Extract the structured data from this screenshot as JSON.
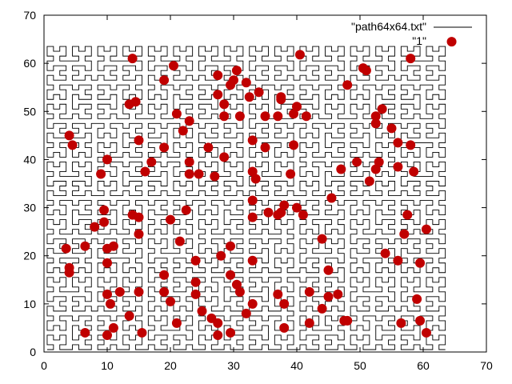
{
  "chart_data": {
    "type": "scatter",
    "xlim": [
      0,
      70
    ],
    "ylim": [
      0,
      70
    ],
    "xticks": [
      0,
      10,
      20,
      30,
      40,
      50,
      60,
      70
    ],
    "yticks": [
      0,
      10,
      20,
      30,
      40,
      50,
      60,
      70
    ],
    "legend_position": "top-right",
    "grid": false,
    "path_grid_size": 64,
    "series": [
      {
        "name": "\"path64x64.txt\"",
        "kind": "line",
        "color": "#000000"
      },
      {
        "name": "\"1\"",
        "kind": "points",
        "color": "#c00000",
        "points": [
          [
            64.5,
            64.5
          ],
          [
            14,
            61
          ],
          [
            20.5,
            59.5
          ],
          [
            40.5,
            61.8
          ],
          [
            58,
            61
          ],
          [
            50.5,
            59
          ],
          [
            51,
            58.5
          ],
          [
            27.5,
            57.5
          ],
          [
            30.5,
            58.5
          ],
          [
            30,
            56.5
          ],
          [
            29.5,
            55.5
          ],
          [
            19,
            56.5
          ],
          [
            32,
            56
          ],
          [
            48,
            55.5
          ],
          [
            27.5,
            53.5
          ],
          [
            32.5,
            53
          ],
          [
            34,
            54
          ],
          [
            37.5,
            53
          ],
          [
            37.5,
            52.5
          ],
          [
            13.5,
            51.5
          ],
          [
            14.5,
            52
          ],
          [
            28.5,
            51.5
          ],
          [
            40,
            51
          ],
          [
            53.5,
            50.5
          ],
          [
            39.5,
            49.5
          ],
          [
            52.5,
            49
          ],
          [
            21,
            49.5
          ],
          [
            28.5,
            49
          ],
          [
            31,
            49
          ],
          [
            35,
            49
          ],
          [
            37,
            49
          ],
          [
            41.5,
            49
          ],
          [
            23,
            48
          ],
          [
            52.5,
            47.5
          ],
          [
            55,
            46.5
          ],
          [
            22,
            46
          ],
          [
            4,
            45
          ],
          [
            33,
            44
          ],
          [
            15,
            44
          ],
          [
            4.5,
            43
          ],
          [
            19,
            42.5
          ],
          [
            26,
            42.5
          ],
          [
            35,
            42.5
          ],
          [
            39.5,
            43
          ],
          [
            56,
            43.5
          ],
          [
            58,
            43
          ],
          [
            10,
            40
          ],
          [
            17,
            39.5
          ],
          [
            28.5,
            40.5
          ],
          [
            49.5,
            39.5
          ],
          [
            53,
            39.5
          ],
          [
            52.5,
            38
          ],
          [
            56,
            38.5
          ],
          [
            47,
            38
          ],
          [
            23,
            39.5
          ],
          [
            9,
            37
          ],
          [
            16,
            37.5
          ],
          [
            23,
            37
          ],
          [
            24.5,
            37
          ],
          [
            27,
            36.5
          ],
          [
            33,
            37.5
          ],
          [
            33.5,
            36
          ],
          [
            39,
            37
          ],
          [
            58.5,
            37.5
          ],
          [
            51.5,
            35.5
          ],
          [
            45.5,
            32
          ],
          [
            33,
            31.5
          ],
          [
            38,
            30.5
          ],
          [
            9.5,
            29.5
          ],
          [
            22.5,
            29.5
          ],
          [
            35.5,
            29
          ],
          [
            37.5,
            29
          ],
          [
            40,
            30
          ],
          [
            14,
            28.5
          ],
          [
            15,
            28
          ],
          [
            33,
            28
          ],
          [
            37,
            28.5
          ],
          [
            41,
            28.5
          ],
          [
            20,
            27.5
          ],
          [
            57.5,
            28.5
          ],
          [
            9.5,
            27
          ],
          [
            8,
            26
          ],
          [
            60.5,
            25.5
          ],
          [
            15,
            24.5
          ],
          [
            57,
            24.5
          ],
          [
            44,
            23.5
          ],
          [
            21.5,
            23
          ],
          [
            3.5,
            21.5
          ],
          [
            6.5,
            22
          ],
          [
            10,
            21.5
          ],
          [
            11,
            22
          ],
          [
            29.5,
            22
          ],
          [
            28,
            20
          ],
          [
            54,
            20.5
          ],
          [
            10,
            18.5
          ],
          [
            24,
            19
          ],
          [
            33,
            19
          ],
          [
            56,
            19
          ],
          [
            59.5,
            18.5
          ],
          [
            4,
            17.5
          ],
          [
            4,
            16.5
          ],
          [
            45,
            17
          ],
          [
            19,
            16
          ],
          [
            29.5,
            16
          ],
          [
            30.5,
            14
          ],
          [
            24,
            14.5
          ],
          [
            31,
            12.5
          ],
          [
            10,
            12
          ],
          [
            12,
            12.5
          ],
          [
            15,
            12.5
          ],
          [
            19,
            12.5
          ],
          [
            24,
            12
          ],
          [
            37,
            12
          ],
          [
            42,
            12.5
          ],
          [
            45,
            11.5
          ],
          [
            46.5,
            12
          ],
          [
            59,
            11
          ],
          [
            10.5,
            10
          ],
          [
            20,
            10.5
          ],
          [
            33,
            10
          ],
          [
            38,
            10
          ],
          [
            25,
            8.5
          ],
          [
            32,
            8
          ],
          [
            44,
            9
          ],
          [
            13.5,
            7.5
          ],
          [
            26.5,
            7
          ],
          [
            21,
            6
          ],
          [
            27.5,
            6
          ],
          [
            42,
            6
          ],
          [
            47.5,
            6.5
          ],
          [
            48,
            6.5
          ],
          [
            56.5,
            6
          ],
          [
            59.5,
            6.5
          ],
          [
            38,
            5
          ],
          [
            11,
            5
          ],
          [
            6.5,
            4
          ],
          [
            10,
            3.5
          ],
          [
            15.5,
            4
          ],
          [
            27.5,
            3.5
          ],
          [
            29.5,
            4
          ],
          [
            60.5,
            4
          ]
        ]
      }
    ]
  }
}
